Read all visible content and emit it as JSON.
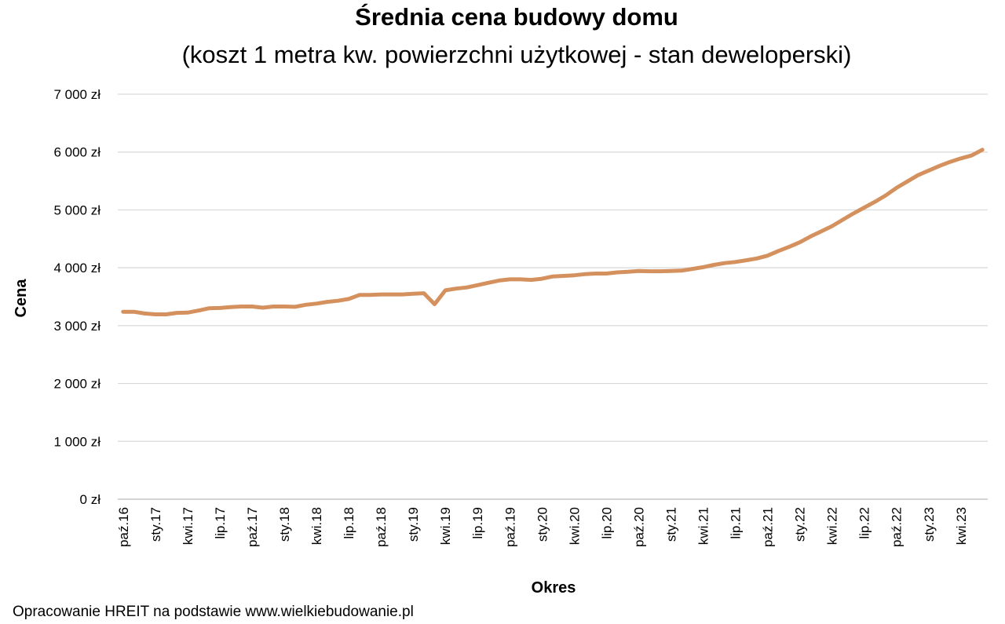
{
  "chart_data": {
    "type": "line",
    "title": "Średnia cena budowy domu",
    "subtitle": "(koszt 1 metra kw. powierzchni użytkowej - stan deweloperski)",
    "x_label": "Okres",
    "y_label": "Cena",
    "source": "Opracowanie HREIT na podstawie www.wielkiebudowanie.pl",
    "categories": [
      "paź.16",
      null,
      null,
      "sty.17",
      null,
      null,
      "kwi.17",
      null,
      null,
      "lip.17",
      null,
      null,
      "paź.17",
      null,
      null,
      "sty.18",
      null,
      null,
      "kwi.18",
      null,
      null,
      "lip.18",
      null,
      null,
      "paź.18",
      null,
      null,
      "sty.19",
      null,
      null,
      "kwi.19",
      null,
      null,
      "lip.19",
      null,
      null,
      "paź.19",
      null,
      null,
      "sty.20",
      null,
      null,
      "kwi.20",
      null,
      null,
      "lip.20",
      null,
      null,
      "paź.20",
      null,
      null,
      "sty.21",
      null,
      null,
      "kwi.21",
      null,
      null,
      "lip.21",
      null,
      null,
      "paź.21",
      null,
      null,
      "sty.22",
      null,
      null,
      "kwi.22",
      null,
      null,
      "lip.22",
      null,
      null,
      "paź.22",
      null,
      null,
      "sty.23",
      null,
      null,
      "kwi.23",
      null,
      null
    ],
    "series": [
      {
        "name": "Cena",
        "color": "#d4915e",
        "values": [
          3240,
          3240,
          3210,
          3195,
          3195,
          3220,
          3225,
          3260,
          3300,
          3305,
          3320,
          3330,
          3330,
          3310,
          3330,
          3330,
          3325,
          3360,
          3380,
          3410,
          3430,
          3460,
          3530,
          3530,
          3540,
          3540,
          3540,
          3550,
          3560,
          3370,
          3610,
          3640,
          3660,
          3700,
          3740,
          3780,
          3800,
          3800,
          3790,
          3810,
          3850,
          3860,
          3870,
          3890,
          3900,
          3900,
          3920,
          3930,
          3945,
          3940,
          3940,
          3945,
          3950,
          3980,
          4010,
          4050,
          4080,
          4100,
          4130,
          4160,
          4210,
          4290,
          4360,
          4440,
          4540,
          4630,
          4720,
          4830,
          4940,
          5040,
          5140,
          5250,
          5380,
          5490,
          5600,
          5680,
          5760,
          5830,
          5890,
          5940,
          6040
        ]
      }
    ],
    "ylim": [
      0,
      7000
    ],
    "yticks": [
      {
        "value": 0,
        "label": "0 zł"
      },
      {
        "value": 1000,
        "label": "1 000 zł"
      },
      {
        "value": 2000,
        "label": "2 000 zł"
      },
      {
        "value": 3000,
        "label": "3 000 zł"
      },
      {
        "value": 4000,
        "label": "4 000 zł"
      },
      {
        "value": 5000,
        "label": "5 000 zł"
      },
      {
        "value": 6000,
        "label": "6 000 zł"
      },
      {
        "value": 7000,
        "label": "7 000 zł"
      }
    ],
    "grid": true
  }
}
